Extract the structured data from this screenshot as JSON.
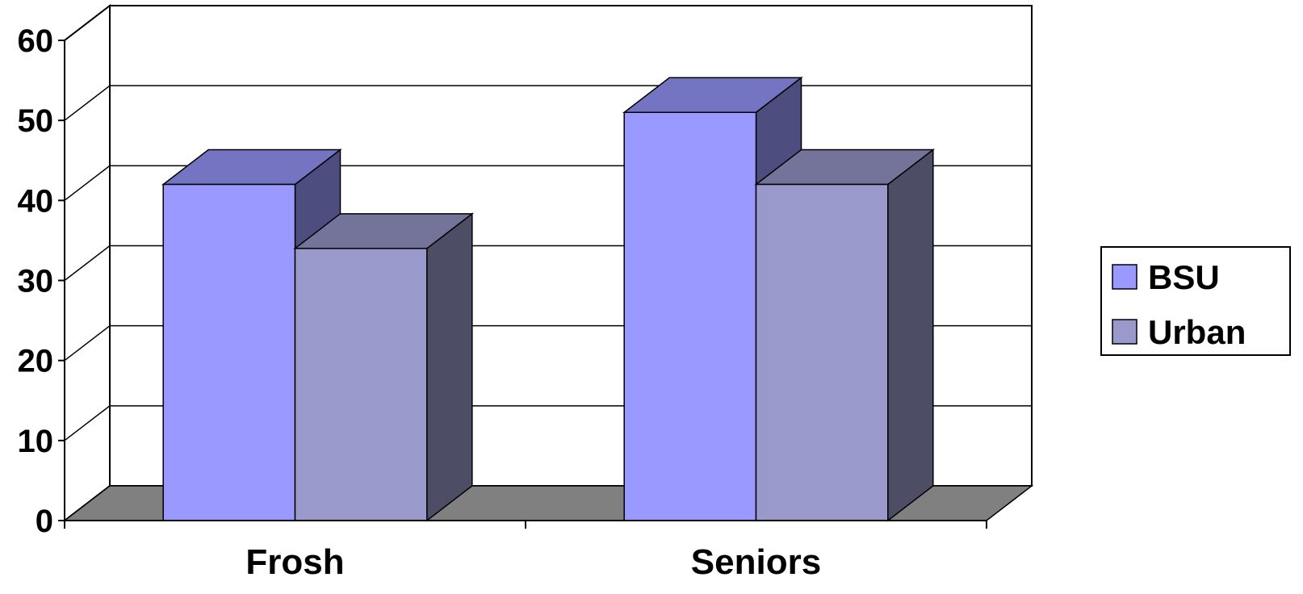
{
  "chart_data": {
    "type": "bar",
    "style": "3d-clustered",
    "categories": [
      "Frosh",
      "Seniors"
    ],
    "series": [
      {
        "name": "BSU",
        "values": [
          42,
          51
        ]
      },
      {
        "name": "Urban",
        "values": [
          34,
          42
        ]
      }
    ],
    "ylim": [
      0,
      60
    ],
    "yticks": [
      0,
      10,
      20,
      30,
      40,
      50,
      60
    ],
    "ytick_labels": [
      "0",
      "10",
      "20",
      "30",
      "40",
      "50",
      "60"
    ],
    "grid": true,
    "legend_position": "right",
    "colors": {
      "BSU": "#9999ff",
      "Urban": "#9999cc",
      "floor": "#808080",
      "grid": "#000000",
      "walls": "#ffffff"
    }
  }
}
